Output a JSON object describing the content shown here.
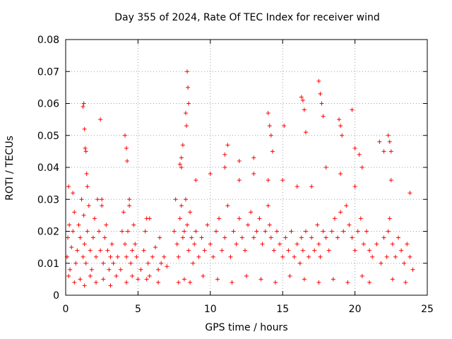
{
  "chart_data": {
    "type": "scatter",
    "title": "Day 355 of 2024, Rate Of TEC Index for receiver wind",
    "xlabel": "GPS time / hours",
    "ylabel": "ROTI / TECUs",
    "xlim": [
      0,
      25
    ],
    "ylim": [
      0,
      0.08
    ],
    "xticks": [
      0,
      5,
      10,
      15,
      20,
      25
    ],
    "yticks": [
      0,
      0.01,
      0.02,
      0.03,
      0.04,
      0.05,
      0.06,
      0.07,
      0.08
    ],
    "xtick_labels": [
      "0",
      "5",
      "10",
      "15",
      "20",
      "25"
    ],
    "ytick_labels": [
      "0",
      "0.01",
      "0.02",
      "0.03",
      "0.04",
      "0.05",
      "0.06",
      "0.07",
      "0.08"
    ],
    "grid": true,
    "marker": "+",
    "marker_color": "#ff0000",
    "grid_color": "#a0a0a0",
    "series": [
      {
        "name": "ROTI",
        "x": [
          0.1,
          0.15,
          0.2,
          0.25,
          0.3,
          0.4,
          0.5,
          0.6,
          0.7,
          0.8,
          0.9,
          1.0,
          1.1,
          1.2,
          1.25,
          1.3,
          1.4,
          1.5,
          1.6,
          1.7,
          1.8,
          1.9,
          2.0,
          2.1,
          2.2,
          2.3,
          2.4,
          2.5,
          2.6,
          2.7,
          2.8,
          2.9,
          3.0,
          3.1,
          3.2,
          3.3,
          3.5,
          3.6,
          3.8,
          3.9,
          4.0,
          4.1,
          4.2,
          4.3,
          4.4,
          4.5,
          4.6,
          4.7,
          4.8,
          4.9,
          5.0,
          5.2,
          5.4,
          5.5,
          5.6,
          5.7,
          5.8,
          6.0,
          6.2,
          6.4,
          6.5,
          6.6,
          6.8,
          7.0,
          7.5,
          7.6,
          7.7,
          7.8,
          7.9,
          8.0,
          8.1,
          8.2,
          8.3,
          8.4,
          8.5,
          8.6,
          8.7,
          8.8,
          8.9,
          9.0,
          9.2,
          9.4,
          9.6,
          9.8,
          10.0,
          10.2,
          10.4,
          10.6,
          10.8,
          11.0,
          11.2,
          11.4,
          11.6,
          11.8,
          12.0,
          12.2,
          12.4,
          12.6,
          12.8,
          13.0,
          13.2,
          13.4,
          13.6,
          13.8,
          14.0,
          14.1,
          14.2,
          14.4,
          14.6,
          14.8,
          15.0,
          15.2,
          15.4,
          15.6,
          15.8,
          16.0,
          16.2,
          16.3,
          16.4,
          16.6,
          16.8,
          17.0,
          17.2,
          17.4,
          17.5,
          17.6,
          17.8,
          18.0,
          18.2,
          18.4,
          18.6,
          18.8,
          19.0,
          19.2,
          19.4,
          19.6,
          19.8,
          20.0,
          20.2,
          20.4,
          20.6,
          20.8,
          21.0,
          21.2,
          21.5,
          21.8,
          22.0,
          22.2,
          22.3,
          22.4,
          22.6,
          22.8,
          23.0,
          23.2,
          23.4,
          23.6,
          23.8,
          24.0,
          0.2,
          0.6,
          1.0,
          1.3,
          1.7,
          2.1,
          2.6,
          3.1,
          4.2,
          4.6,
          5.6,
          6.4,
          7.8,
          8.2,
          8.6,
          9.5,
          10.5,
          11.5,
          12.5,
          13.5,
          14.5,
          15.5,
          16.5,
          17.5,
          18.5,
          19.5,
          20.5,
          21.0,
          22.6,
          23.5,
          0.5,
          1.5,
          2.5,
          4.4,
          5.8,
          8.0,
          9.0,
          10.0,
          11.0,
          12.0,
          13.0,
          14.0,
          15.0,
          16.0,
          17.0,
          18.0,
          19.0,
          20.0,
          22.5,
          23.8,
          1.2,
          1.25,
          1.3,
          1.35,
          1.4,
          1.45,
          2.4,
          4.1,
          4.2,
          4.25,
          8.4,
          8.45,
          8.5,
          8.3,
          8.35,
          8.1,
          8.0,
          7.9,
          11.2,
          11.0,
          12.0,
          13.0,
          14.0,
          14.1,
          14.2,
          14.3,
          15.1,
          16.3,
          16.4,
          16.5,
          16.6,
          17.5,
          17.6,
          17.7,
          17.8,
          18.9,
          19.0,
          19.1,
          19.8,
          20.0,
          20.3,
          20.5,
          21.7,
          22.0,
          22.3,
          22.4,
          22.5
        ],
        "y": [
          0.012,
          0.018,
          0.034,
          0.022,
          0.008,
          0.015,
          0.02,
          0.026,
          0.01,
          0.014,
          0.022,
          0.018,
          0.03,
          0.012,
          0.025,
          0.016,
          0.01,
          0.02,
          0.028,
          0.014,
          0.008,
          0.018,
          0.024,
          0.012,
          0.03,
          0.02,
          0.014,
          0.028,
          0.01,
          0.018,
          0.022,
          0.014,
          0.008,
          0.012,
          0.016,
          0.01,
          0.006,
          0.012,
          0.008,
          0.02,
          0.026,
          0.016,
          0.012,
          0.02,
          0.028,
          0.01,
          0.014,
          0.022,
          0.016,
          0.012,
          0.005,
          0.008,
          0.014,
          0.02,
          0.024,
          0.01,
          0.006,
          0.012,
          0.015,
          0.008,
          0.018,
          0.01,
          0.012,
          0.009,
          0.02,
          0.03,
          0.016,
          0.012,
          0.024,
          0.028,
          0.018,
          0.02,
          0.03,
          0.022,
          0.014,
          0.026,
          0.018,
          0.01,
          0.016,
          0.02,
          0.012,
          0.018,
          0.014,
          0.022,
          0.016,
          0.012,
          0.02,
          0.024,
          0.014,
          0.018,
          0.028,
          0.012,
          0.02,
          0.016,
          0.024,
          0.018,
          0.014,
          0.022,
          0.026,
          0.018,
          0.02,
          0.024,
          0.016,
          0.02,
          0.028,
          0.022,
          0.018,
          0.014,
          0.02,
          0.016,
          0.012,
          0.018,
          0.014,
          0.02,
          0.012,
          0.016,
          0.01,
          0.018,
          0.014,
          0.02,
          0.012,
          0.018,
          0.014,
          0.022,
          0.016,
          0.012,
          0.02,
          0.018,
          0.014,
          0.02,
          0.024,
          0.018,
          0.026,
          0.02,
          0.028,
          0.022,
          0.018,
          0.014,
          0.02,
          0.024,
          0.016,
          0.02,
          0.014,
          0.012,
          0.016,
          0.01,
          0.018,
          0.012,
          0.02,
          0.024,
          0.016,
          0.012,
          0.018,
          0.014,
          0.01,
          0.016,
          0.012,
          0.008,
          0.006,
          0.004,
          0.005,
          0.003,
          0.006,
          0.004,
          0.005,
          0.003,
          0.004,
          0.006,
          0.005,
          0.004,
          0.004,
          0.005,
          0.004,
          0.006,
          0.005,
          0.004,
          0.006,
          0.005,
          0.004,
          0.006,
          0.005,
          0.004,
          0.005,
          0.004,
          0.006,
          0.004,
          0.005,
          0.004,
          0.032,
          0.034,
          0.03,
          0.03,
          0.024,
          0.04,
          0.036,
          0.038,
          0.04,
          0.036,
          0.038,
          0.036,
          0.036,
          0.034,
          0.034,
          0.04,
          0.038,
          0.034,
          0.036,
          0.032,
          0.059,
          0.06,
          0.052,
          0.046,
          0.045,
          0.038,
          0.055,
          0.05,
          0.046,
          0.042,
          0.07,
          0.065,
          0.06,
          0.057,
          0.053,
          0.047,
          0.043,
          0.041,
          0.047,
          0.044,
          0.042,
          0.043,
          0.057,
          0.053,
          0.05,
          0.045,
          0.053,
          0.062,
          0.061,
          0.058,
          0.051,
          0.067,
          0.063,
          0.06,
          0.056,
          0.055,
          0.053,
          0.05,
          0.058,
          0.046,
          0.044,
          0.04,
          0.048,
          0.045,
          0.05,
          0.048,
          0.045
        ]
      }
    ]
  }
}
